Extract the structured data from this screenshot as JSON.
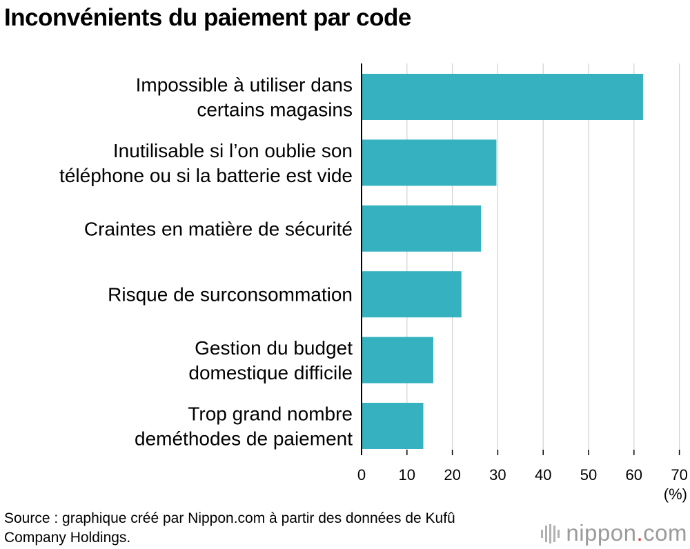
{
  "chart_data": {
    "type": "bar",
    "orientation": "horizontal",
    "title": "Inconvénients du paiement par code",
    "categories": [
      [
        "Impossible à utiliser dans",
        "certains magasins"
      ],
      [
        "Inutilisable si l’on oublie son",
        "téléphone ou si la batterie est vide"
      ],
      [
        "Craintes en matière de sécurité"
      ],
      [
        "Risque de surconsommation"
      ],
      [
        "Gestion du budget",
        "domestique difficile"
      ],
      [
        "Trop grand nombre",
        "deméthodes de paiement"
      ]
    ],
    "values": [
      62,
      29.7,
      26.3,
      22,
      15.8,
      13.6
    ],
    "xlim": [
      0,
      70
    ],
    "xticks": [
      0,
      10,
      20,
      30,
      40,
      50,
      60,
      70
    ],
    "xlabel": "(%)",
    "grid": true,
    "bar_color": "#35b1bf",
    "grid_color": "#d4d4d4"
  },
  "source": "Source : graphique créé par Nippon.com à partir des données de Kufû Company Holdings.",
  "logo": {
    "name": "nippon",
    "dot": ".",
    "tld": "com",
    "icon": "nippon-logo-icon"
  }
}
